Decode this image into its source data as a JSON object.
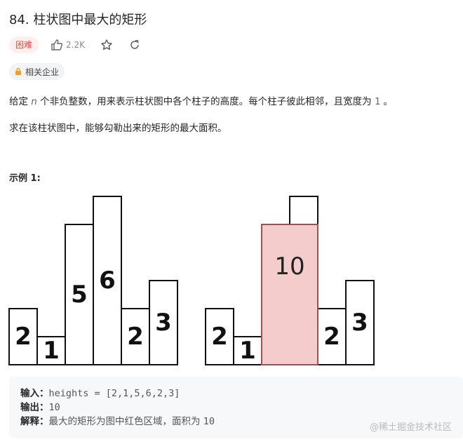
{
  "header": {
    "title": "84. 柱状图中最大的矩形",
    "difficulty": "困难",
    "likes": "2.2K",
    "tag": "相关企业"
  },
  "description": {
    "p1": [
      "给定 ",
      "n",
      " 个非负整数，用来表示柱状图中各个柱子的高度。每个柱子彼此相邻，且宽度为 ",
      "1",
      " 。"
    ],
    "p2": "求在该柱状图中，能够勾勒出来的矩形的最大面积。"
  },
  "example": {
    "title": "示例 1:",
    "figures": [
      {
        "heights": [
          2,
          1,
          5,
          6,
          2,
          3
        ]
      },
      {
        "heights": [
          2,
          1,
          5,
          6,
          2,
          3
        ],
        "highlight": {
          "from": 2,
          "to": 3,
          "area": 10
        }
      }
    ],
    "input_label": "输入：",
    "input": "heights = [2,1,5,6,2,3]",
    "output_label": "输出：",
    "output": "10",
    "explanation_label": "解释：",
    "explanation": "最大的矩形为图中红色区域，面积为 ",
    "explanation_value": "10"
  },
  "watermark": "@稀土掘金技术社区"
}
